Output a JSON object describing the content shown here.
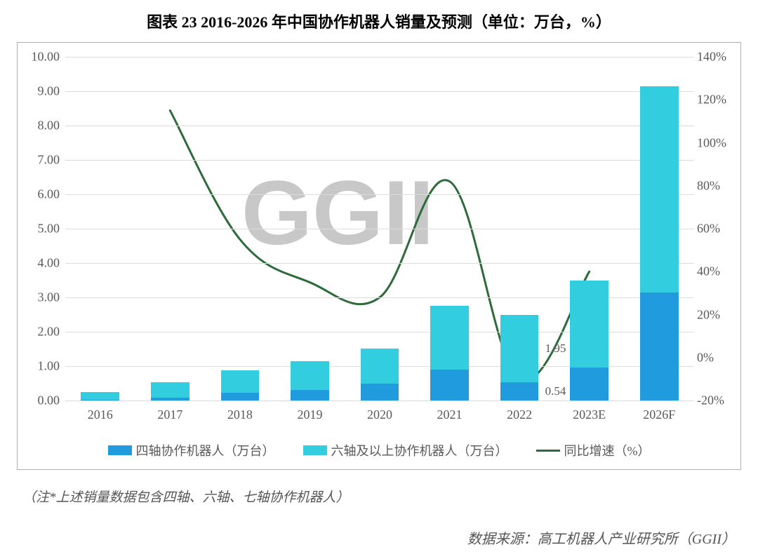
{
  "title": "图表 23  2016-2026 年中国协作机器人销量及预测（单位：万台，%）",
  "note": "（注*上述销量数据包含四轴、六轴、七轴协作机器人）",
  "source": "数据来源：高工机器人产业研究所（GGII）",
  "watermark_text": "GGII",
  "watermark_fontsize": 130,
  "chart": {
    "type": "combo-stacked-bar-line",
    "background_color": "#ffffff",
    "grid_color": "#dcdcdc",
    "axis_text_color": "#595959",
    "axis_fontsize": 18,
    "categories": [
      "2016",
      "2017",
      "2018",
      "2019",
      "2020",
      "2021",
      "2022",
      "2023E",
      "2026F"
    ],
    "series_bar_bottom": {
      "name": "四轴协作机器人（万台）",
      "color": "#1f9bde",
      "values": [
        0.02,
        0.08,
        0.22,
        0.3,
        0.5,
        0.9,
        0.54,
        0.95,
        3.15
      ]
    },
    "series_bar_top": {
      "name": "六轴及以上协作机器人（万台）",
      "color": "#33cde0",
      "values": [
        0.23,
        0.45,
        0.65,
        0.85,
        1.02,
        1.85,
        1.95,
        2.55,
        6.0
      ]
    },
    "series_line": {
      "name": "同比增速（%）",
      "color": "#2e6b3a",
      "width": 3,
      "smooth": true,
      "values_pct": [
        null,
        115,
        55,
        35,
        28,
        82,
        -10,
        40,
        null
      ]
    },
    "bar_value_labels": [
      {
        "category": "2022",
        "segment": "top",
        "text": "1.95"
      },
      {
        "category": "2022",
        "segment": "bottom",
        "text": "0.54"
      }
    ],
    "y_left": {
      "min": 0.0,
      "max": 10.0,
      "step": 1.0,
      "decimals": 2
    },
    "y_right": {
      "min": -20,
      "max": 140,
      "step": 20,
      "suffix": "%"
    },
    "bar_width_ratio": 0.55
  },
  "legend": {
    "items": [
      {
        "type": "box",
        "color": "#1f9bde",
        "label": "四轴协作机器人（万台）"
      },
      {
        "type": "box",
        "color": "#33cde0",
        "label": "六轴及以上协作机器人（万台）"
      },
      {
        "type": "line",
        "color": "#2e6b3a",
        "label": "同比增速（%）"
      }
    ]
  }
}
